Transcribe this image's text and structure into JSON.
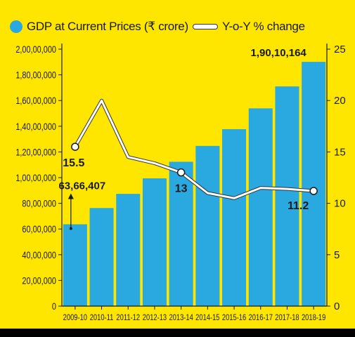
{
  "chart_data": {
    "type": "bar",
    "categories": [
      "2009-10",
      "2010-11",
      "2011-12",
      "2012-13",
      "2013-14",
      "2014-15",
      "2015-16",
      "2016-17",
      "2017-18",
      "2018-19"
    ],
    "series": [
      {
        "name": "GDP at Current Prices (₹ crore)",
        "type": "bar",
        "axis": "left",
        "color": "#29A9E0",
        "values": [
          6366407,
          7634472,
          8736329,
          9944013,
          11233522,
          12467959,
          13771874,
          15391669,
          17098304,
          19010164
        ]
      },
      {
        "name": "Y-o-Y % change",
        "type": "line",
        "axis": "right",
        "color": "#FFFFFF",
        "values": [
          15.5,
          20,
          14.5,
          13.9,
          13,
          11,
          10.5,
          11.5,
          11.4,
          11.2
        ]
      }
    ],
    "y_left": {
      "ylim": [
        0,
        20000000
      ],
      "tick_labels": [
        "0",
        "20,00,000",
        "40,00,000",
        "60,00,000",
        "80,00,000",
        "1,00,00,000",
        "1,20,00,000",
        "1,40,00,000",
        "1,60,00,000",
        "1,80,00,000",
        "2,00,00,000"
      ]
    },
    "y_right": {
      "ylim": [
        0,
        25
      ],
      "tick_labels": [
        "0",
        "5",
        "10",
        "15",
        "20",
        "25"
      ]
    },
    "annotations": {
      "first_bar": "63,66,407",
      "last_bar": "1,90,10,164",
      "line_points": [
        "15.5",
        "13",
        "11.2"
      ]
    },
    "legend_position": "top",
    "grid": false
  },
  "legend": {
    "bar_label": "GDP at Current Prices (₹ crore)",
    "line_label": "Y-o-Y % change"
  },
  "colors": {
    "background": "#FFE600",
    "bar": "#29A9E0",
    "line": "#FFFFFF",
    "axis": "#1A1A1A"
  }
}
